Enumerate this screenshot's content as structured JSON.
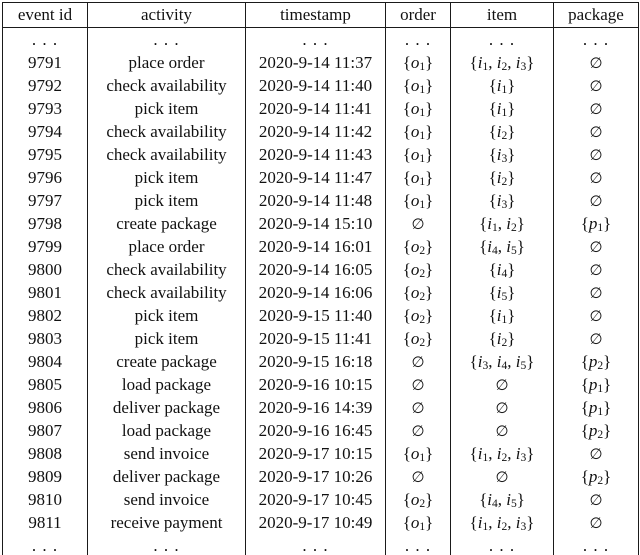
{
  "table": {
    "columns": [
      {
        "key": "event_id",
        "label": "event id"
      },
      {
        "key": "activity",
        "label": "activity"
      },
      {
        "key": "timestamp",
        "label": "timestamp"
      },
      {
        "key": "order",
        "label": "order"
      },
      {
        "key": "item",
        "label": "item"
      },
      {
        "key": "package",
        "label": "package"
      }
    ],
    "ellipsis": ". . .",
    "rows": [
      {
        "event_id": ". . .",
        "activity": ". . .",
        "timestamp": ". . .",
        "order": ". . .",
        "item": ". . .",
        "package": ". . ."
      },
      {
        "event_id": "9791",
        "activity": "place order",
        "timestamp": "2020-9-14 11:37",
        "order": "{o_1}",
        "item": "{i_1, i_2, i_3}",
        "package": "∅"
      },
      {
        "event_id": "9792",
        "activity": "check availability",
        "timestamp": "2020-9-14 11:40",
        "order": "{o_1}",
        "item": "{i_1}",
        "package": "∅"
      },
      {
        "event_id": "9793",
        "activity": "pick item",
        "timestamp": "2020-9-14 11:41",
        "order": "{o_1}",
        "item": "{i_1}",
        "package": "∅"
      },
      {
        "event_id": "9794",
        "activity": "check availability",
        "timestamp": "2020-9-14 11:42",
        "order": "{o_1}",
        "item": "{i_2}",
        "package": "∅"
      },
      {
        "event_id": "9795",
        "activity": "check availability",
        "timestamp": "2020-9-14 11:43",
        "order": "{o_1}",
        "item": "{i_3}",
        "package": "∅"
      },
      {
        "event_id": "9796",
        "activity": "pick item",
        "timestamp": "2020-9-14 11:47",
        "order": "{o_1}",
        "item": "{i_2}",
        "package": "∅"
      },
      {
        "event_id": "9797",
        "activity": "pick item",
        "timestamp": "2020-9-14 11:48",
        "order": "{o_1}",
        "item": "{i_3}",
        "package": "∅"
      },
      {
        "event_id": "9798",
        "activity": "create package",
        "timestamp": "2020-9-14 15:10",
        "order": "∅",
        "item": "{i_1, i_2}",
        "package": "{p_1}"
      },
      {
        "event_id": "9799",
        "activity": "place order",
        "timestamp": "2020-9-14 16:01",
        "order": "{o_2}",
        "item": "{i_4, i_5}",
        "package": "∅"
      },
      {
        "event_id": "9800",
        "activity": "check availability",
        "timestamp": "2020-9-14 16:05",
        "order": "{o_2}",
        "item": "{i_4}",
        "package": "∅"
      },
      {
        "event_id": "9801",
        "activity": "check availability",
        "timestamp": "2020-9-14 16:06",
        "order": "{o_2}",
        "item": "{i_5}",
        "package": "∅"
      },
      {
        "event_id": "9802",
        "activity": "pick item",
        "timestamp": "2020-9-15 11:40",
        "order": "{o_2}",
        "item": "{i_1}",
        "package": "∅"
      },
      {
        "event_id": "9803",
        "activity": "pick item",
        "timestamp": "2020-9-15 11:41",
        "order": "{o_2}",
        "item": "{i_2}",
        "package": "∅"
      },
      {
        "event_id": "9804",
        "activity": "create package",
        "timestamp": "2020-9-15 16:18",
        "order": "∅",
        "item": "{i_3, i_4, i_5}",
        "package": "{p_2}"
      },
      {
        "event_id": "9805",
        "activity": "load package",
        "timestamp": "2020-9-16 10:15",
        "order": "∅",
        "item": "∅",
        "package": "{p_1}"
      },
      {
        "event_id": "9806",
        "activity": "deliver package",
        "timestamp": "2020-9-16 14:39",
        "order": "∅",
        "item": "∅",
        "package": "{p_1}"
      },
      {
        "event_id": "9807",
        "activity": "load package",
        "timestamp": "2020-9-16 16:45",
        "order": "∅",
        "item": "∅",
        "package": "{p_2}"
      },
      {
        "event_id": "9808",
        "activity": "send invoice",
        "timestamp": "2020-9-17 10:15",
        "order": "{o_1}",
        "item": "{i_1, i_2, i_3}",
        "package": "∅"
      },
      {
        "event_id": "9809",
        "activity": "deliver package",
        "timestamp": "2020-9-17 10:26",
        "order": "∅",
        "item": "∅",
        "package": "{p_2}"
      },
      {
        "event_id": "9810",
        "activity": "send invoice",
        "timestamp": "2020-9-17 10:45",
        "order": "{o_2}",
        "item": "{i_4, i_5}",
        "package": "∅"
      },
      {
        "event_id": "9811",
        "activity": "receive payment",
        "timestamp": "2020-9-17 10:49",
        "order": "{o_1}",
        "item": "{i_1, i_2, i_3}",
        "package": "∅"
      },
      {
        "event_id": ". . .",
        "activity": ". . .",
        "timestamp": ". . .",
        "order": ". . .",
        "item": ". . .",
        "package": ". . ."
      }
    ]
  }
}
